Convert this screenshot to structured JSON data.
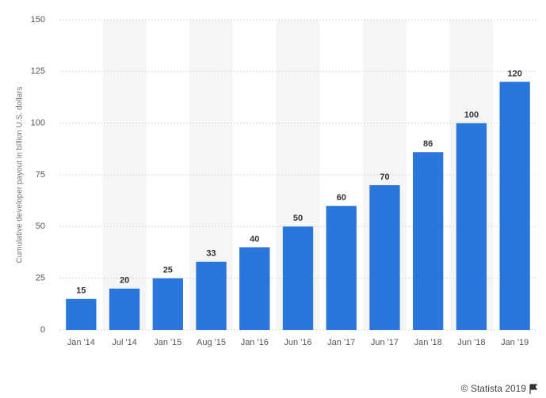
{
  "chart_data": {
    "type": "bar",
    "y_label": "Cumulative developer payout in billion U.S. dollars",
    "categories": [
      "Jan '14",
      "Jul '14",
      "Jan '15",
      "Aug '15",
      "Jan '16",
      "Jun '16",
      "Jan '17",
      "Jun '17",
      "Jan '18",
      "Jun '18",
      "Jan '19"
    ],
    "values": [
      15,
      20,
      25,
      33,
      40,
      50,
      60,
      70,
      86,
      100,
      120
    ],
    "color": "#2a76dd",
    "ylim": [
      0,
      150
    ],
    "yticks": [
      0,
      25,
      50,
      75,
      100,
      125,
      150
    ],
    "grid": true,
    "credit": "© Statista 2019"
  }
}
